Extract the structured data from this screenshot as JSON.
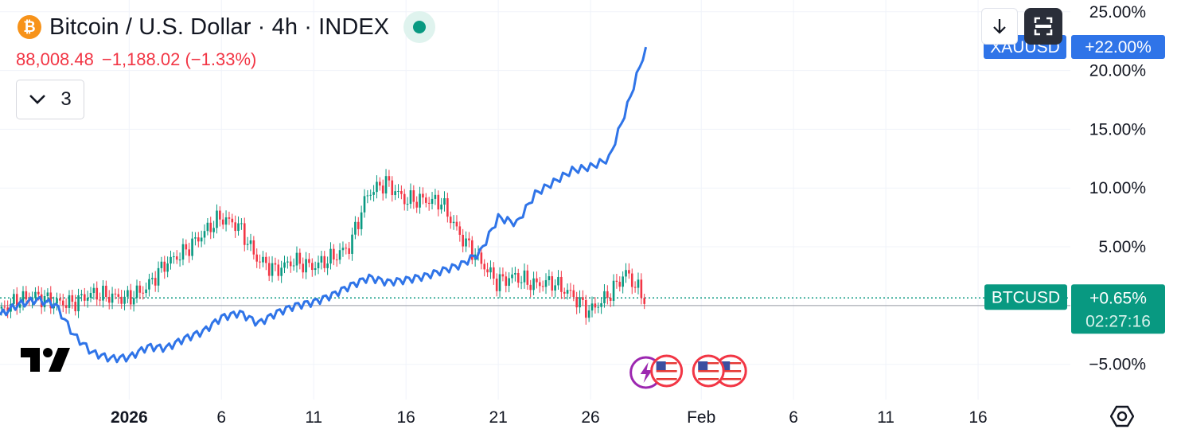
{
  "header": {
    "symbol_title": "Bitcoin / U.S. Dollar · 4h · INDEX",
    "logo_glyph": "₿",
    "price": "88,008.48",
    "change": "−1,188.02 (−1.33%)",
    "collapse_count": "3"
  },
  "colors": {
    "xauusd_line": "#2f74e8",
    "btc_up": "#089981",
    "btc_down": "#f23645",
    "price_badge": "#089981",
    "symbol_badge": "#2f74e8"
  },
  "icons": [
    "bitcoin-icon",
    "market-status-icon",
    "chevron-down-icon",
    "tradingview-logo-icon",
    "arrow-down-icon",
    "fullscreen-icon",
    "settings-icon",
    "us-flag-icon",
    "lightning-icon"
  ],
  "chart_data": {
    "type": "line",
    "subtype": "percent-comparison",
    "x_tick_labels": [
      "2026",
      "6",
      "11",
      "16",
      "21",
      "26",
      "Feb",
      "6",
      "11",
      "16"
    ],
    "y_ticks": [
      25,
      20,
      15,
      10,
      5,
      -5
    ],
    "y_tick_labels": [
      "25.00%",
      "20.00%",
      "15.00%",
      "10.00%",
      "5.00%",
      "−5.00%"
    ],
    "ylim": [
      -8,
      26
    ],
    "xlim": [
      "2025-12-25",
      "2026-02-21"
    ],
    "grid": true,
    "badges": {
      "xauusd": {
        "symbol": "XAUUSD",
        "value": "+22.00%",
        "y": 22.0
      },
      "btcusd": {
        "symbol": "BTCUSD",
        "value": "+0.65%",
        "countdown": "02:27:16",
        "y": 0.65
      }
    },
    "series": [
      {
        "name": "XAUUSD",
        "style": "line",
        "points": [
          [
            "2025-12-25",
            -0.8
          ],
          [
            "2025-12-26",
            0.1
          ],
          [
            "2025-12-27",
            0.5
          ],
          [
            "2025-12-28",
            0.1
          ],
          [
            "2025-12-29",
            -2.5
          ],
          [
            "2025-12-30",
            -4.0
          ],
          [
            "2025-12-31",
            -4.5
          ],
          [
            "2026-01-01",
            -4.4
          ],
          [
            "2026-01-02",
            -3.5
          ],
          [
            "2026-01-03",
            -3.6
          ],
          [
            "2026-01-04",
            -2.8
          ],
          [
            "2026-01-05",
            -2.2
          ],
          [
            "2026-01-06",
            -1.0
          ],
          [
            "2026-01-07",
            -0.6
          ],
          [
            "2026-01-08",
            -1.5
          ],
          [
            "2026-01-09",
            -0.6
          ],
          [
            "2026-01-10",
            0.0
          ],
          [
            "2026-01-11",
            0.3
          ],
          [
            "2026-01-12",
            0.9
          ],
          [
            "2026-01-13",
            1.7
          ],
          [
            "2026-01-14",
            2.4
          ],
          [
            "2026-01-15",
            2.0
          ],
          [
            "2026-01-16",
            2.2
          ],
          [
            "2026-01-17",
            2.5
          ],
          [
            "2026-01-18",
            3.0
          ],
          [
            "2026-01-19",
            3.5
          ],
          [
            "2026-01-20",
            4.5
          ],
          [
            "2026-01-21",
            7.5
          ],
          [
            "2026-01-22",
            7.0
          ],
          [
            "2026-01-23",
            9.5
          ],
          [
            "2026-01-24",
            10.5
          ],
          [
            "2026-01-25",
            11.5
          ],
          [
            "2026-01-26",
            11.8
          ],
          [
            "2026-01-27",
            12.5
          ],
          [
            "2026-01-28",
            17.0
          ],
          [
            "2026-01-29",
            22.0
          ]
        ]
      },
      {
        "name": "BTCUSD",
        "style": "candles",
        "points": [
          [
            "2025-12-25",
            -0.5
          ],
          [
            "2025-12-26",
            0.4
          ],
          [
            "2025-12-27",
            0.8
          ],
          [
            "2025-12-28",
            0.3
          ],
          [
            "2025-12-29",
            0.2
          ],
          [
            "2025-12-30",
            1.0
          ],
          [
            "2025-12-31",
            0.8
          ],
          [
            "2026-01-01",
            0.6
          ],
          [
            "2026-01-02",
            1.5
          ],
          [
            "2026-01-03",
            3.5
          ],
          [
            "2026-01-04",
            4.5
          ],
          [
            "2026-01-05",
            6.0
          ],
          [
            "2026-01-06",
            7.5
          ],
          [
            "2026-01-07",
            6.8
          ],
          [
            "2026-01-08",
            4.0
          ],
          [
            "2026-01-09",
            3.0
          ],
          [
            "2026-01-10",
            3.8
          ],
          [
            "2026-01-11",
            3.3
          ],
          [
            "2026-01-12",
            4.0
          ],
          [
            "2026-01-13",
            5.0
          ],
          [
            "2026-01-14",
            9.5
          ],
          [
            "2026-01-15",
            10.5
          ],
          [
            "2026-01-16",
            9.0
          ],
          [
            "2026-01-17",
            9.0
          ],
          [
            "2026-01-18",
            8.8
          ],
          [
            "2026-01-19",
            6.0
          ],
          [
            "2026-01-20",
            4.0
          ],
          [
            "2026-01-21",
            2.0
          ],
          [
            "2026-01-22",
            2.5
          ],
          [
            "2026-01-23",
            1.8
          ],
          [
            "2026-01-24",
            2.0
          ],
          [
            "2026-01-25",
            1.0
          ],
          [
            "2026-01-26",
            -0.5
          ],
          [
            "2026-01-27",
            0.8
          ],
          [
            "2026-01-28",
            2.8
          ],
          [
            "2026-01-29",
            0.65
          ]
        ]
      }
    ],
    "annotations": [
      {
        "type": "event",
        "date": "2026-01-29",
        "icons": [
          "lightning-icon",
          "us-flag-icon"
        ]
      },
      {
        "type": "event",
        "date": "2026-02-01",
        "icons": [
          "us-flag-icon",
          "us-flag-icon"
        ]
      }
    ]
  }
}
